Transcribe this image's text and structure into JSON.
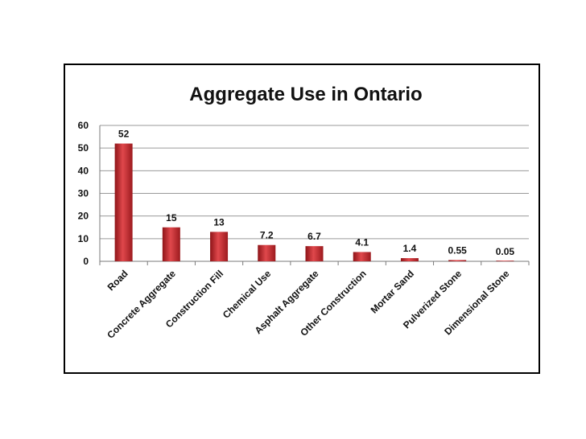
{
  "chart_data": {
    "type": "bar",
    "title": "Aggregate Use in Ontario",
    "xlabel": "",
    "ylabel": "",
    "categories": [
      "Road",
      "Concrete Aggregate",
      "Construction Fill",
      "Chemical Use",
      "Asphalt Aggregate",
      "Other Construction",
      "Mortar Sand",
      "Pulverized Stone",
      "Dimensional Stone"
    ],
    "values": [
      52,
      15,
      13,
      7.2,
      6.7,
      4.1,
      1.4,
      0.55,
      0.05
    ],
    "data_labels": [
      "52",
      "15",
      "13",
      "7.2",
      "6.7",
      "4.1",
      "1.4",
      "0.55",
      "0.05"
    ],
    "ylim": [
      0,
      60
    ],
    "yticks": [
      "0",
      "10",
      "20",
      "30",
      "40",
      "50",
      "60"
    ],
    "grid": true,
    "legend": "none",
    "bar_color": "#c0282d"
  }
}
